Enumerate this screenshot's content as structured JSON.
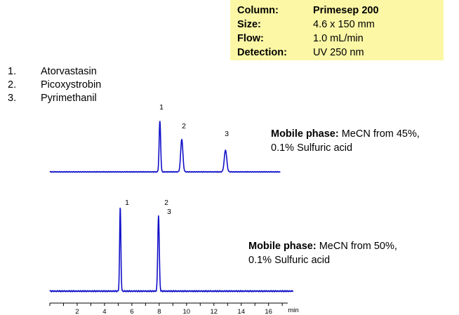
{
  "conditions": [
    {
      "key": "Column:",
      "value": "Primesep 200",
      "bold_value": true
    },
    {
      "key": "Size:",
      "value": "4.6 x 150 mm",
      "bold_value": false
    },
    {
      "key": "Flow:",
      "value": "1.0 mL/min",
      "bold_value": false
    },
    {
      "key": "Detection:",
      "value": "UV 250 nm",
      "bold_value": false
    }
  ],
  "compounds": [
    {
      "num": "1.",
      "name": "Atorvastasin"
    },
    {
      "num": "2.",
      "name": "Picoxystrobin"
    },
    {
      "num": "3.",
      "name": "Pyrimethanil"
    }
  ],
  "mobile_phase_top": {
    "label": "Mobile phase:",
    "line1": " MeCN from 45%,",
    "line2": "0.1% Sulfuric acid"
  },
  "mobile_phase_bottom": {
    "label": "Mobile phase:",
    "line1": " MeCN from 50%,",
    "line2": "0.1% Sulfuric acid"
  },
  "colors": {
    "trace": "#1010c8",
    "info_box": "#fbf7a5"
  },
  "chart_data": {
    "type": "line",
    "x_unit": "min",
    "xlim": [
      0,
      18
    ],
    "x_ticks": [
      2,
      4,
      6,
      8,
      10,
      12,
      14,
      16
    ],
    "x_tick_labels": [
      "2",
      "4",
      "6",
      "8",
      "10",
      "12",
      "14",
      "16"
    ],
    "series": [
      {
        "peaks": [
          {
            "label": "1",
            "rt": 8.05,
            "height": 0.98,
            "width": 0.055
          },
          {
            "label": "2",
            "rt": 9.65,
            "height": 0.63,
            "width": 0.08
          },
          {
            "label": "3",
            "rt": 12.85,
            "height": 0.42,
            "width": 0.09
          }
        ]
      },
      {
        "peaks": [
          {
            "label": "1",
            "rt": 5.15,
            "height": 1.0,
            "width": 0.045
          },
          {
            "label": "2",
            "rt": 7.95,
            "height": 0.9,
            "width": 0.055
          },
          {
            "label": "3",
            "rt": 7.98,
            "height": 0.0,
            "width": 0.055
          }
        ]
      }
    ]
  }
}
